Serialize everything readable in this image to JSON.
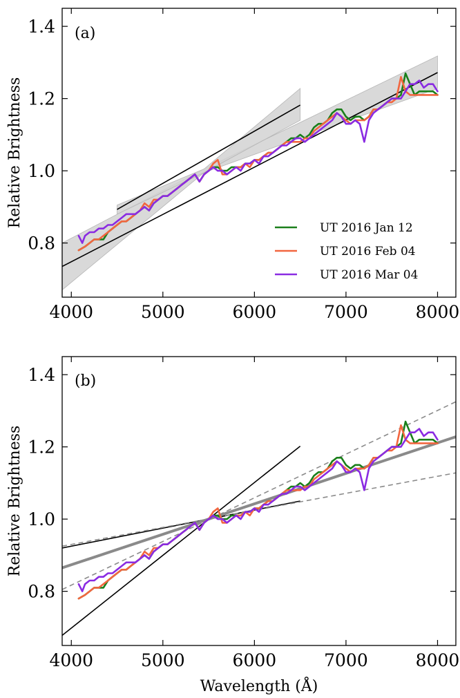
{
  "colors": {
    "jan": "#1a7f1a",
    "feb": "#f2663f",
    "mar": "#8a2be2",
    "band": "#d2d2d2",
    "fit": "#000000",
    "grayfit": "#8a8a8a"
  },
  "chart_data": [
    {
      "type": "line",
      "panel_label": "(a)",
      "xlabel": "",
      "ylabel": "Relative Brightness",
      "xlim": [
        3900,
        8200
      ],
      "ylim": [
        0.65,
        1.45
      ],
      "xticks": [
        4000,
        5000,
        6000,
        7000,
        8000
      ],
      "yticks": [
        0.8,
        1.0,
        1.2,
        1.4
      ],
      "xtick_labels": [
        "4000",
        "5000",
        "6000",
        "7000",
        "8000"
      ],
      "ytick_labels": [
        "0.8",
        "1.0",
        "1.2",
        "1.4"
      ],
      "legend_position": "lower-right",
      "series": [
        {
          "name": "UT 2016 Jan 12",
          "color_key": "jan",
          "x": [
            4080,
            4150,
            4200,
            4250,
            4300,
            4350,
            4400,
            4450,
            4500,
            4550,
            4600,
            4650,
            4700,
            4750,
            4800,
            4850,
            4900,
            4950,
            5000,
            5050,
            5100,
            5150,
            5200,
            5250,
            5300,
            5350,
            5400,
            5450,
            5500,
            5550,
            5600,
            5650,
            5700,
            5750,
            5800,
            5850,
            5900,
            5950,
            6000,
            6050,
            6100,
            6150,
            6200,
            6250,
            6300,
            6350,
            6400,
            6450,
            6500,
            6550,
            6600,
            6650,
            6700,
            6750,
            6800,
            6850,
            6900,
            6950,
            7000,
            7050,
            7100,
            7150,
            7200,
            7250,
            7300,
            7350,
            7400,
            7450,
            7500,
            7550,
            7600,
            7650,
            7700,
            7750,
            7800,
            7850,
            7900,
            7950,
            8000
          ],
          "y": [
            0.78,
            0.79,
            0.8,
            0.81,
            0.81,
            0.81,
            0.83,
            0.84,
            0.85,
            0.86,
            0.86,
            0.87,
            0.88,
            0.89,
            0.9,
            0.89,
            0.91,
            0.92,
            0.93,
            0.93,
            0.94,
            0.95,
            0.96,
            0.97,
            0.98,
            0.99,
            0.97,
            0.99,
            1.0,
            1.01,
            1.01,
            1.0,
            1.0,
            1.01,
            1.01,
            1.01,
            1.02,
            1.02,
            1.03,
            1.03,
            1.04,
            1.05,
            1.05,
            1.06,
            1.07,
            1.08,
            1.09,
            1.09,
            1.1,
            1.09,
            1.1,
            1.12,
            1.13,
            1.13,
            1.14,
            1.16,
            1.17,
            1.17,
            1.15,
            1.14,
            1.15,
            1.15,
            1.14,
            1.15,
            1.17,
            1.17,
            1.18,
            1.19,
            1.2,
            1.2,
            1.21,
            1.27,
            1.24,
            1.21,
            1.22,
            1.22,
            1.22,
            1.22,
            1.21
          ]
        },
        {
          "name": "UT 2016 Feb 04",
          "color_key": "feb",
          "x": [
            4080,
            4150,
            4200,
            4250,
            4300,
            4350,
            4400,
            4450,
            4500,
            4550,
            4600,
            4650,
            4700,
            4750,
            4800,
            4850,
            4900,
            4950,
            5000,
            5050,
            5100,
            5150,
            5200,
            5250,
            5300,
            5350,
            5400,
            5450,
            5500,
            5550,
            5600,
            5650,
            5700,
            5750,
            5800,
            5850,
            5900,
            5950,
            6000,
            6050,
            6100,
            6150,
            6200,
            6250,
            6300,
            6350,
            6400,
            6450,
            6500,
            6550,
            6600,
            6650,
            6700,
            6750,
            6800,
            6850,
            6900,
            6950,
            7000,
            7050,
            7100,
            7150,
            7200,
            7250,
            7300,
            7350,
            7400,
            7450,
            7500,
            7550,
            7600,
            7650,
            7700,
            7750,
            7800,
            7850,
            7900,
            7950,
            8000
          ],
          "y": [
            0.78,
            0.79,
            0.8,
            0.81,
            0.81,
            0.82,
            0.83,
            0.84,
            0.85,
            0.86,
            0.86,
            0.87,
            0.88,
            0.89,
            0.91,
            0.9,
            0.92,
            0.92,
            0.93,
            0.93,
            0.94,
            0.95,
            0.96,
            0.97,
            0.98,
            0.99,
            0.97,
            0.99,
            1.0,
            1.02,
            1.03,
            0.99,
            0.99,
            1.0,
            1.01,
            1.01,
            1.02,
            1.01,
            1.03,
            1.03,
            1.04,
            1.05,
            1.05,
            1.06,
            1.07,
            1.08,
            1.08,
            1.08,
            1.08,
            1.09,
            1.09,
            1.11,
            1.12,
            1.13,
            1.14,
            1.15,
            1.16,
            1.15,
            1.14,
            1.13,
            1.14,
            1.14,
            1.14,
            1.15,
            1.17,
            1.17,
            1.18,
            1.19,
            1.19,
            1.2,
            1.26,
            1.22,
            1.21,
            1.21,
            1.21,
            1.21,
            1.21,
            1.21,
            1.21
          ]
        },
        {
          "name": "UT 2016 Mar 04",
          "color_key": "mar",
          "x": [
            4080,
            4120,
            4150,
            4200,
            4250,
            4300,
            4350,
            4400,
            4450,
            4500,
            4550,
            4600,
            4650,
            4700,
            4750,
            4800,
            4850,
            4900,
            4950,
            5000,
            5050,
            5100,
            5150,
            5200,
            5250,
            5300,
            5350,
            5400,
            5450,
            5500,
            5550,
            5600,
            5650,
            5700,
            5750,
            5800,
            5850,
            5900,
            5950,
            6000,
            6050,
            6100,
            6150,
            6200,
            6250,
            6300,
            6350,
            6400,
            6450,
            6500,
            6550,
            6600,
            6650,
            6700,
            6750,
            6800,
            6850,
            6900,
            6950,
            7000,
            7050,
            7100,
            7150,
            7200,
            7250,
            7300,
            7350,
            7400,
            7450,
            7500,
            7550,
            7600,
            7650,
            7700,
            7750,
            7800,
            7850,
            7900,
            7950,
            8000
          ],
          "y": [
            0.82,
            0.8,
            0.82,
            0.83,
            0.83,
            0.84,
            0.84,
            0.85,
            0.85,
            0.86,
            0.87,
            0.88,
            0.88,
            0.88,
            0.89,
            0.9,
            0.89,
            0.91,
            0.92,
            0.93,
            0.93,
            0.94,
            0.95,
            0.96,
            0.97,
            0.98,
            0.99,
            0.97,
            0.99,
            1.0,
            1.01,
            1.0,
            1.0,
            0.99,
            1.0,
            1.01,
            1.0,
            1.02,
            1.02,
            1.03,
            1.02,
            1.04,
            1.04,
            1.05,
            1.06,
            1.07,
            1.07,
            1.08,
            1.09,
            1.09,
            1.08,
            1.09,
            1.1,
            1.11,
            1.12,
            1.13,
            1.14,
            1.16,
            1.15,
            1.13,
            1.13,
            1.14,
            1.13,
            1.08,
            1.14,
            1.16,
            1.17,
            1.18,
            1.19,
            1.2,
            1.2,
            1.2,
            1.22,
            1.24,
            1.24,
            1.25,
            1.23,
            1.24,
            1.24,
            1.22
          ]
        }
      ],
      "fits": [
        {
          "style": "solid",
          "color_key": "fit",
          "x": [
            3900,
            8000
          ],
          "y": [
            0.735,
            1.272
          ]
        },
        {
          "style": "solid",
          "color_key": "fit",
          "x": [
            4500,
            6500
          ],
          "y": [
            0.893,
            1.182
          ]
        }
      ],
      "bands": [
        {
          "color_key": "band",
          "x": [
            3900,
            5450,
            8000
          ],
          "lower": [
            0.67,
            0.995,
            1.228
          ],
          "upper": [
            0.8,
            1.005,
            1.318
          ]
        },
        {
          "color_key": "band",
          "x": [
            4500,
            5450,
            6500
          ],
          "lower": [
            0.88,
            0.995,
            1.14
          ],
          "upper": [
            0.905,
            1.005,
            1.228
          ]
        }
      ]
    },
    {
      "type": "line",
      "panel_label": "(b)",
      "xlabel": "Wavelength (Å)",
      "ylabel": "Relative Brightness",
      "xlim": [
        3900,
        8200
      ],
      "ylim": [
        0.65,
        1.45
      ],
      "xticks": [
        4000,
        5000,
        6000,
        7000,
        8000
      ],
      "yticks": [
        0.8,
        1.0,
        1.2,
        1.4
      ],
      "xtick_labels": [
        "4000",
        "5000",
        "6000",
        "7000",
        "8000"
      ],
      "ytick_labels": [
        "0.8",
        "1.0",
        "1.2",
        "1.4"
      ],
      "series_ref": "same as panel (a)",
      "fits": [
        {
          "style": "solid",
          "color_key": "fit",
          "x": [
            3900,
            6500
          ],
          "y": [
            0.678,
            1.202
          ]
        },
        {
          "style": "solid",
          "color_key": "fit",
          "x": [
            3900,
            6500
          ],
          "y": [
            0.92,
            1.05
          ]
        },
        {
          "style": "thick",
          "color_key": "grayfit",
          "x": [
            3900,
            8200
          ],
          "y": [
            0.865,
            1.228
          ]
        },
        {
          "style": "dashed",
          "color_key": "grayfit",
          "x": [
            3900,
            8200
          ],
          "y": [
            0.805,
            1.325
          ]
        },
        {
          "style": "dashed",
          "color_key": "grayfit",
          "x": [
            3900,
            8200
          ],
          "y": [
            0.925,
            1.128
          ]
        }
      ]
    }
  ]
}
